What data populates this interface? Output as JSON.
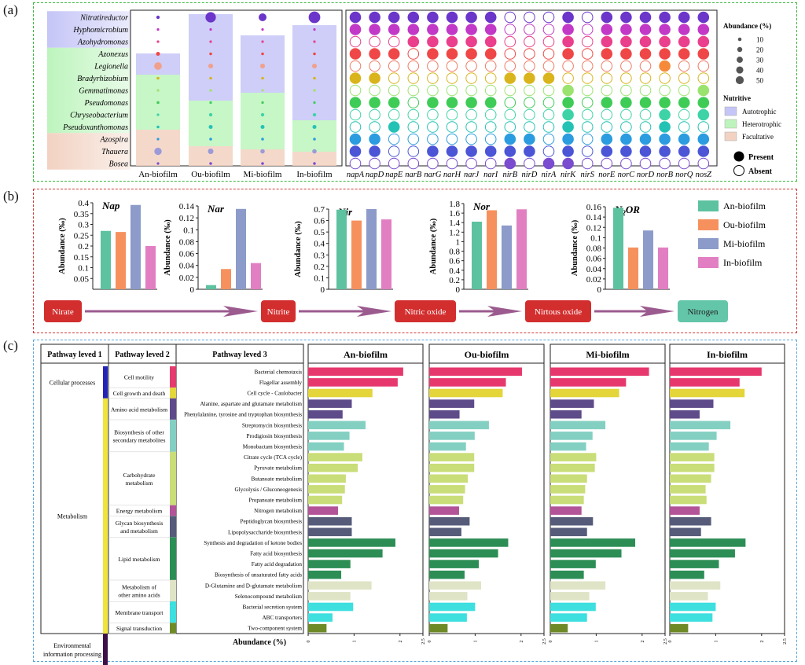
{
  "panel_labels": {
    "a": "(a)",
    "b": "(b)",
    "c": "(c)"
  },
  "colors": {
    "autotrophic": "#c5c5f7",
    "heterotrophic": "#bdf4bd",
    "facultative": "#f2d2c2",
    "frame_a": "#3cb93c",
    "frame_b": "#d23c3c",
    "frame_c": "#5aa6dc",
    "an": "#5dc29f",
    "ou": "#f6915e",
    "mi": "#8c9bc9",
    "in": "#e27fc2",
    "flow_box": "#d32e2e",
    "flow_final": "#63c6a9",
    "arrow": "#9b5b8f"
  },
  "chart_data": [
    {
      "type": "bubble-matrix",
      "title": "",
      "genera": [
        "Nitratireductor",
        "Hyphomicrobium",
        "Azohydromonas",
        "Azonexus",
        "Legionella",
        "Bradyrhizobium",
        "Gemmatimonas",
        "Pseudomonas",
        "Chryseobacterium",
        "Pseudoxanthomonas",
        "Azospira",
        "Thauera",
        "Bosea"
      ],
      "genus_groups": [
        "Autotrophic",
        "Autotrophic",
        "Autotrophic",
        "Heterotrophic",
        "Heterotrophic",
        "Heterotrophic",
        "Heterotrophic",
        "Heterotrophic",
        "Heterotrophic",
        "Heterotrophic",
        "Facultative",
        "Facultative",
        "Facultative"
      ],
      "row_colors": [
        "#6b36c9",
        "#c238c7",
        "#ea3f8c",
        "#ef4747",
        "#f07a62",
        "#d9b41d",
        "#a6e070",
        "#3fcc56",
        "#3dd3a6",
        "#24c2b5",
        "#2b9ce0",
        "#4b55d6",
        "#7a4ccf"
      ],
      "samples": [
        "An-biofilm",
        "Ou-biofilm",
        "Mi-biofilm",
        "In-biofilm"
      ],
      "abundance": [
        [
          3,
          28,
          16,
          35
        ],
        [
          1,
          1,
          1,
          1
        ],
        [
          1,
          1,
          1,
          1
        ],
        [
          4,
          2,
          2,
          2
        ],
        [
          15,
          6,
          6,
          6
        ],
        [
          2,
          2,
          2,
          2
        ],
        [
          1,
          2,
          1,
          2
        ],
        [
          2,
          1,
          1,
          1
        ],
        [
          1,
          3,
          3,
          3
        ],
        [
          2,
          4,
          4,
          4
        ],
        [
          1,
          2,
          2,
          2
        ],
        [
          14,
          8,
          5,
          5
        ],
        [
          1,
          2,
          2,
          2
        ]
      ],
      "genes": [
        "napA",
        "napD",
        "napE",
        "narB",
        "narG",
        "narH",
        "narJ",
        "narI",
        "nirB",
        "nirD",
        "nirA",
        "nirK",
        "nirS",
        "norE",
        "norC",
        "norD",
        "norB",
        "norQ",
        "nosZ"
      ],
      "presence": [
        [
          1,
          1,
          1,
          1,
          1,
          1,
          1,
          1,
          0,
          0,
          0,
          1,
          0,
          1,
          1,
          1,
          1,
          1,
          1
        ],
        [
          1,
          1,
          1,
          1,
          1,
          1,
          1,
          1,
          0,
          0,
          0,
          1,
          0,
          1,
          1,
          1,
          1,
          1,
          1
        ],
        [
          0,
          0,
          0,
          1,
          1,
          1,
          1,
          1,
          0,
          0,
          0,
          1,
          0,
          1,
          1,
          1,
          1,
          1,
          1
        ],
        [
          1,
          1,
          1,
          0,
          1,
          1,
          1,
          1,
          0,
          0,
          0,
          1,
          0,
          1,
          1,
          1,
          1,
          1,
          1
        ],
        [
          0,
          0,
          0,
          0,
          0,
          0,
          0,
          0,
          0,
          0,
          0,
          0,
          0,
          0,
          0,
          0,
          1,
          0,
          0
        ],
        [
          1,
          1,
          0,
          0,
          0,
          0,
          0,
          0,
          1,
          1,
          1,
          0,
          0,
          0,
          0,
          0,
          0,
          0,
          0
        ],
        [
          0,
          0,
          0,
          0,
          0,
          0,
          0,
          0,
          0,
          0,
          0,
          1,
          0,
          0,
          0,
          0,
          0,
          0,
          1
        ],
        [
          1,
          1,
          1,
          0,
          1,
          1,
          1,
          1,
          0,
          0,
          0,
          1,
          0,
          1,
          1,
          1,
          1,
          1,
          1
        ],
        [
          0,
          0,
          0,
          0,
          0,
          0,
          0,
          0,
          0,
          0,
          0,
          1,
          0,
          0,
          0,
          0,
          1,
          0,
          1
        ],
        [
          0,
          0,
          1,
          0,
          0,
          0,
          0,
          0,
          0,
          0,
          0,
          1,
          0,
          0,
          0,
          0,
          1,
          0,
          0
        ],
        [
          1,
          1,
          0,
          0,
          0,
          0,
          0,
          0,
          1,
          1,
          0,
          1,
          0,
          1,
          1,
          1,
          1,
          1,
          1
        ],
        [
          1,
          1,
          0,
          0,
          1,
          1,
          1,
          1,
          1,
          1,
          0,
          1,
          0,
          1,
          1,
          1,
          1,
          1,
          1
        ],
        [
          0,
          0,
          0,
          0,
          0,
          0,
          0,
          0,
          1,
          0,
          1,
          1,
          0,
          0,
          0,
          0,
          0,
          0,
          0
        ]
      ],
      "legend_size_title": "Abundance (%)",
      "legend_sizes": [
        10,
        20,
        30,
        40,
        50
      ],
      "legend_group_title": "Nutritive",
      "legend_groups": [
        "Autotrophic",
        "Heterotrophic",
        "Facultative"
      ],
      "legend_present": "Present",
      "legend_absent": "Absent"
    },
    {
      "type": "bar",
      "ylabel": "Abundance (‰)",
      "series_names": [
        "An-biofilm",
        "Ou-biofilm",
        "Mi-biofilm",
        "In-biofilm"
      ],
      "charts": [
        {
          "title": "Nap",
          "values": [
            0.27,
            0.265,
            0.39,
            0.2
          ],
          "ylim": [
            0,
            0.4
          ],
          "ticks": [
            "0.05",
            "0.1",
            "0.15",
            "0.2",
            "0.25",
            "0.3",
            "0.35",
            "0.4"
          ],
          "tick_values": [
            0.05,
            0.1,
            0.15,
            0.2,
            0.25,
            0.3,
            0.35,
            0.4
          ]
        },
        {
          "title": "Nar",
          "values": [
            0.007,
            0.034,
            0.135,
            0.044
          ],
          "ylim": [
            0,
            0.14
          ],
          "ticks": [
            "0",
            "0.02",
            "0.04",
            "0.06",
            "0.08",
            "0.1",
            "0.12",
            "0.14"
          ],
          "tick_values": [
            0,
            0.02,
            0.04,
            0.06,
            0.08,
            0.1,
            0.12,
            0.14
          ]
        },
        {
          "title": "Nir",
          "values": [
            0.695,
            0.6,
            0.7,
            0.61
          ],
          "ylim": [
            0,
            0.7
          ],
          "ticks": [
            "0",
            "0.1",
            "0.2",
            "0.3",
            "0.4",
            "0.5",
            "0.6",
            "0.7"
          ],
          "tick_values": [
            0,
            0.1,
            0.2,
            0.3,
            0.4,
            0.5,
            0.6,
            0.7
          ]
        },
        {
          "title": "Nor",
          "values": [
            1.42,
            1.66,
            1.34,
            1.68
          ],
          "ylim": [
            0,
            1.8
          ],
          "ticks": [
            "0",
            "0.2",
            "0.4",
            "0.6",
            "0.8",
            "1",
            "1.2",
            "1.4",
            "1.6",
            "1.8"
          ],
          "tick_values": [
            0,
            0.2,
            0.4,
            0.6,
            0.8,
            1,
            1.2,
            1.4,
            1.6,
            1.8
          ]
        },
        {
          "title": "N2OR",
          "values": [
            0.158,
            0.081,
            0.114,
            0.081
          ],
          "ylim": [
            0,
            0.16
          ],
          "ticks": [
            "0",
            "0.02",
            "0.04",
            "0.06",
            "0.08",
            "0.1",
            "0.12",
            "0.14",
            "0.16"
          ],
          "tick_values": [
            0,
            0.02,
            0.04,
            0.06,
            0.08,
            0.1,
            0.12,
            0.14,
            0.16
          ]
        }
      ],
      "flow": [
        "Nirate",
        "Nitrite",
        "Nitric oxide",
        "Nirtous oxide",
        "Nitrogen"
      ]
    },
    {
      "type": "bar",
      "headers": [
        "Pathway leved 1",
        "Pathway leved 2",
        "Pathway leved 3"
      ],
      "xlabel": "Abundance (%)",
      "xlim": [
        0,
        2.5
      ],
      "xticks": [
        "0",
        "1",
        "2",
        "2.5"
      ],
      "xtick_values": [
        0,
        1,
        2,
        2.5
      ],
      "level1": [
        {
          "name": "Cellular processes",
          "span": [
            0,
            3
          ],
          "color": "#2323b5"
        },
        {
          "name": "Metabolism",
          "span": [
            3,
            25
          ],
          "color": "#f0e33a"
        },
        {
          "name": "Environmental information processing",
          "span": [
            25,
            28
          ],
          "color": "#3d1049"
        }
      ],
      "level2": [
        {
          "name": "Cell motility",
          "span": [
            0,
            2
          ],
          "color": "#e43c6e"
        },
        {
          "name": "Cell growth and death",
          "span": [
            2,
            3
          ],
          "color": "#e4d73a"
        },
        {
          "name": "Amino acid metabolism",
          "span": [
            3,
            5
          ],
          "color": "#5e4b89"
        },
        {
          "name": "Biosynthesis of other secondary metabolites",
          "span": [
            5,
            8
          ],
          "color": "#83d0c2"
        },
        {
          "name": "Carbohydrate metabolism",
          "span": [
            8,
            13
          ],
          "color": "#c9dd78"
        },
        {
          "name": "Energy metabolism",
          "span": [
            13,
            14
          ],
          "color": "#b25497"
        },
        {
          "name": "Glycan biosynthesis and metabolism",
          "span": [
            14,
            16
          ],
          "color": "#555b79"
        },
        {
          "name": "Lipid metabolism",
          "span": [
            16,
            20
          ],
          "color": "#2c8e55"
        },
        {
          "name": "Metabolism of other amino acids",
          "span": [
            20,
            22
          ],
          "color": "#dfe4c6"
        },
        {
          "name": "Membrane transport",
          "span": [
            22,
            24
          ],
          "color": "#3edfdf"
        },
        {
          "name": "Signal transduction",
          "span": [
            24,
            25
          ],
          "color": "#6d8a27"
        }
      ],
      "pathways": [
        "Bacterial chemotaxis",
        "Flagellar assembly",
        "Cell cycle - Caulobacter",
        "Alanine, aspartate and glutamate metabolism",
        "Phenylalanine, tyrosine and tryptophan biosynthesis",
        "Streptomycin biosynthesis",
        "Prodigiosin biosynthesis",
        "Monobactam biosynthesis",
        "Citrate cycle (TCA cycle)",
        "Pyruvate metabolism",
        "Butanoate metabolism",
        "Glycolysis / Gluconeogenesis",
        "Propanoate metabolism",
        "Nitrogen metabolism",
        "Peptidoglycan biosynthesis",
        "Lipopolysaccharide biosynthesis",
        "Synthesis and degradation of ketone bodies",
        "Fatty acid biosynthesis",
        "Fatty acid degradation",
        "Biosynthesis of unsaturated fatty acids",
        "D-Glutamine and D-glutamate metabolism",
        "Selenocompound metabolism",
        "Bacterial secretion system",
        "ABC transporters",
        "Two-component system"
      ],
      "pathway_colors": [
        "#e7386e",
        "#e7386e",
        "#e4d53a",
        "#5e4b89",
        "#5e4b89",
        "#83d0c2",
        "#83d0c2",
        "#83d0c2",
        "#c9dd78",
        "#c9dd78",
        "#c9dd78",
        "#c9dd78",
        "#c9dd78",
        "#b25497",
        "#555b79",
        "#555b79",
        "#2c8e55",
        "#2c8e55",
        "#2c8e55",
        "#2c8e55",
        "#dfe4c6",
        "#dfe4c6",
        "#3edfdf",
        "#3edfdf",
        "#6d8a27"
      ],
      "series": [
        {
          "name": "An-biofilm",
          "values": [
            2.07,
            1.95,
            1.4,
            0.95,
            0.75,
            1.25,
            0.9,
            0.78,
            1.18,
            1.08,
            0.82,
            0.8,
            0.74,
            0.65,
            0.95,
            0.95,
            1.9,
            1.62,
            0.92,
            0.72,
            1.38,
            0.92,
            0.98,
            0.53,
            0.4
          ]
        },
        {
          "name": "Ou-biofilm",
          "values": [
            2.02,
            1.67,
            1.6,
            0.98,
            0.66,
            1.3,
            0.99,
            0.8,
            0.98,
            0.98,
            0.84,
            0.78,
            0.74,
            0.65,
            0.88,
            0.7,
            1.72,
            1.5,
            1.08,
            0.77,
            1.13,
            0.83,
            1.0,
            0.82,
            0.4
          ]
        },
        {
          "name": "Mi-biofilm",
          "values": [
            2.15,
            1.65,
            1.5,
            0.95,
            0.68,
            1.2,
            0.92,
            0.78,
            1.0,
            0.97,
            0.8,
            0.76,
            0.73,
            0.68,
            0.93,
            0.8,
            1.85,
            1.55,
            0.99,
            0.73,
            1.2,
            0.85,
            0.99,
            0.8,
            0.38
          ]
        },
        {
          "name": "In-biofilm",
          "values": [
            2.0,
            1.52,
            1.63,
            0.95,
            0.65,
            1.32,
            1.02,
            0.85,
            0.97,
            0.97,
            0.9,
            0.78,
            0.8,
            0.65,
            0.9,
            0.68,
            1.65,
            1.42,
            1.07,
            0.75,
            1.1,
            0.83,
            1.0,
            0.93,
            0.4
          ]
        }
      ]
    }
  ]
}
